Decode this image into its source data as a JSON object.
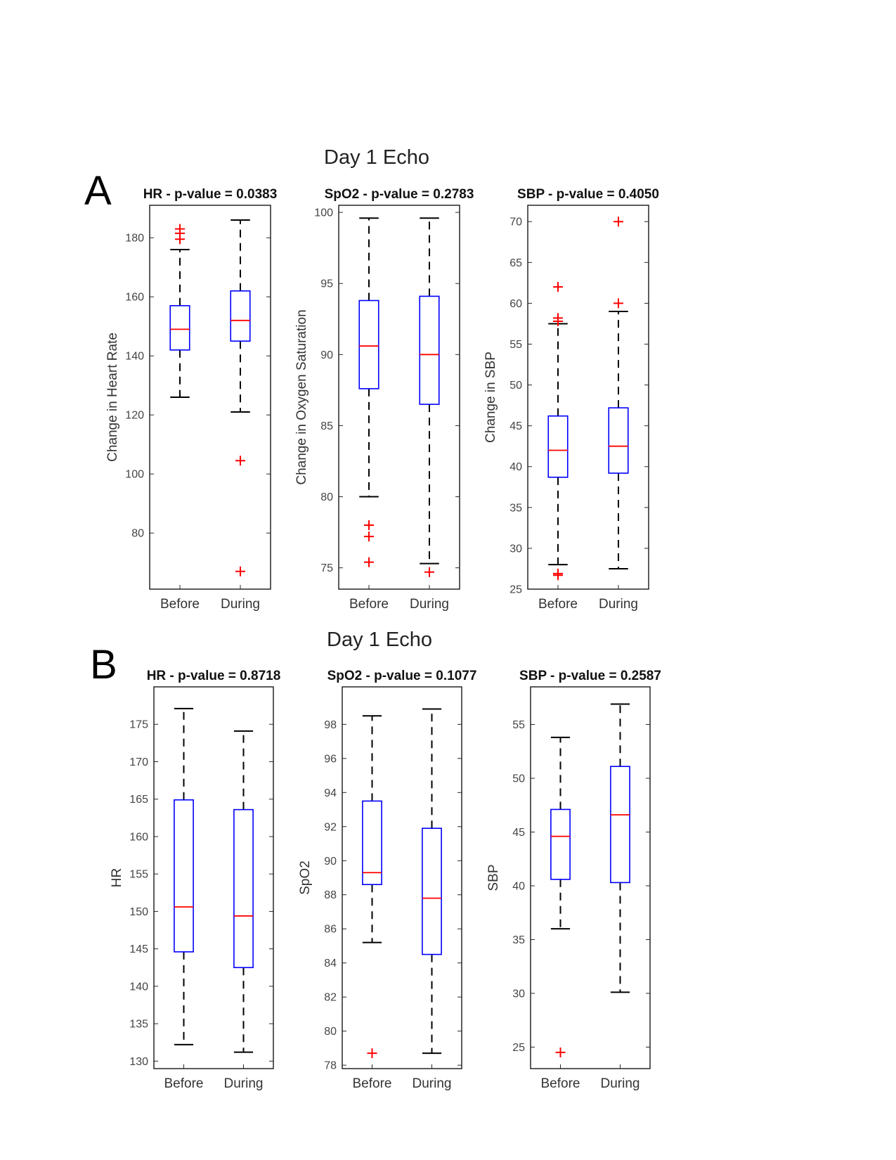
{
  "figure": {
    "panels": [
      {
        "letter": "A",
        "title": "Day 1 Echo"
      },
      {
        "letter": "B",
        "title": "Day 1 Echo"
      }
    ]
  },
  "chart_data": [
    {
      "type": "box",
      "panel": "A",
      "title": "HR - p-value = 0.0383",
      "xlabel": "",
      "ylabel": "Change in Heart Rate",
      "categories": [
        "Before",
        "During"
      ],
      "ylim": [
        61,
        191
      ],
      "yticks": [
        80,
        100,
        120,
        140,
        160,
        180
      ],
      "colors": {
        "box": "#0000ff",
        "median": "#ff0000",
        "whisker": "#000000",
        "outlier": "#ff0000"
      },
      "boxes": [
        {
          "name": "Before",
          "whisker_low": 126,
          "q1": 142,
          "median": 149,
          "q3": 157,
          "whisker_high": 176,
          "outliers": [
            179.5,
            181.5,
            183
          ]
        },
        {
          "name": "During",
          "whisker_low": 121,
          "q1": 145,
          "median": 152,
          "q3": 162,
          "whisker_high": 186,
          "outliers": [
            104.5,
            67
          ]
        }
      ]
    },
    {
      "type": "box",
      "panel": "A",
      "title": "SpO2 - p-value = 0.2783",
      "xlabel": "",
      "ylabel": "Change in Oxygen Saturation",
      "categories": [
        "Before",
        "During"
      ],
      "ylim": [
        73.5,
        100.5
      ],
      "yticks": [
        75,
        80,
        85,
        90,
        95,
        100
      ],
      "colors": {
        "box": "#0000ff",
        "median": "#ff0000",
        "whisker": "#000000",
        "outlier": "#ff0000"
      },
      "boxes": [
        {
          "name": "Before",
          "whisker_low": 80,
          "q1": 87.6,
          "median": 90.6,
          "q3": 93.8,
          "whisker_high": 99.6,
          "outliers": [
            78,
            77.2,
            75.4
          ]
        },
        {
          "name": "During",
          "whisker_low": 75.3,
          "q1": 86.5,
          "median": 90,
          "q3": 94.1,
          "whisker_high": 99.6,
          "outliers": [
            74.7
          ]
        }
      ]
    },
    {
      "type": "box",
      "panel": "A",
      "title": "SBP - p-value = 0.4050",
      "xlabel": "",
      "ylabel": "Change in SBP",
      "categories": [
        "Before",
        "During"
      ],
      "ylim": [
        25,
        72
      ],
      "yticks": [
        25,
        30,
        35,
        40,
        45,
        50,
        55,
        60,
        65,
        70
      ],
      "colors": {
        "box": "#0000ff",
        "median": "#ff0000",
        "whisker": "#000000",
        "outlier": "#ff0000"
      },
      "boxes": [
        {
          "name": "Before",
          "whisker_low": 28,
          "q1": 38.7,
          "median": 42,
          "q3": 46.2,
          "whisker_high": 57.5,
          "outliers": [
            62,
            58.2,
            57.8,
            26.9,
            26.7
          ]
        },
        {
          "name": "During",
          "whisker_low": 27.5,
          "q1": 39.2,
          "median": 42.5,
          "q3": 47.2,
          "whisker_high": 59,
          "outliers": [
            70,
            60
          ]
        }
      ]
    },
    {
      "type": "box",
      "panel": "B",
      "title": "HR - p-value = 0.8718",
      "xlabel": "",
      "ylabel": "HR",
      "categories": [
        "Before",
        "During"
      ],
      "ylim": [
        129,
        180
      ],
      "yticks": [
        130,
        135,
        140,
        145,
        150,
        155,
        160,
        165,
        170,
        175
      ],
      "colors": {
        "box": "#0000ff",
        "median": "#ff0000",
        "whisker": "#000000",
        "outlier": "#ff0000"
      },
      "boxes": [
        {
          "name": "Before",
          "whisker_low": 132.2,
          "q1": 144.6,
          "median": 150.6,
          "q3": 164.9,
          "whisker_high": 177.1,
          "outliers": []
        },
        {
          "name": "During",
          "whisker_low": 131.2,
          "q1": 142.5,
          "median": 149.4,
          "q3": 163.6,
          "whisker_high": 174.1,
          "outliers": []
        }
      ]
    },
    {
      "type": "box",
      "panel": "B",
      "title": "SpO2 - p-value = 0.1077",
      "xlabel": "",
      "ylabel": "SpO2",
      "categories": [
        "Before",
        "During"
      ],
      "ylim": [
        77.8,
        100.2
      ],
      "yticks": [
        78,
        80,
        82,
        84,
        86,
        88,
        90,
        92,
        94,
        96,
        98
      ],
      "colors": {
        "box": "#0000ff",
        "median": "#ff0000",
        "whisker": "#000000",
        "outlier": "#ff0000"
      },
      "boxes": [
        {
          "name": "Before",
          "whisker_low": 85.2,
          "q1": 88.6,
          "median": 89.3,
          "q3": 93.5,
          "whisker_high": 98.5,
          "outliers": [
            78.7
          ]
        },
        {
          "name": "During",
          "whisker_low": 78.7,
          "q1": 84.5,
          "median": 87.8,
          "q3": 91.9,
          "whisker_high": 98.9,
          "outliers": []
        }
      ]
    },
    {
      "type": "box",
      "panel": "B",
      "title": "SBP - p-value = 0.2587",
      "xlabel": "",
      "ylabel": "SBP",
      "categories": [
        "Before",
        "During"
      ],
      "ylim": [
        23,
        58.5
      ],
      "yticks": [
        25,
        30,
        35,
        40,
        45,
        50,
        55
      ],
      "colors": {
        "box": "#0000ff",
        "median": "#ff0000",
        "whisker": "#000000",
        "outlier": "#ff0000"
      },
      "boxes": [
        {
          "name": "Before",
          "whisker_low": 36,
          "q1": 40.6,
          "median": 44.6,
          "q3": 47.1,
          "whisker_high": 53.8,
          "outliers": [
            24.5
          ]
        },
        {
          "name": "During",
          "whisker_low": 30.1,
          "q1": 40.3,
          "median": 46.6,
          "q3": 51.1,
          "whisker_high": 56.9,
          "outliers": []
        }
      ]
    }
  ]
}
